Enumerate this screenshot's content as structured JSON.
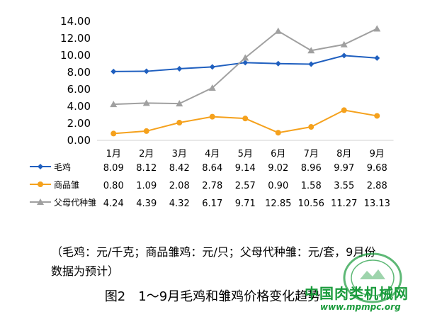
{
  "chart_data": {
    "type": "line",
    "categories": [
      "1月",
      "2月",
      "3月",
      "4月",
      "5月",
      "6月",
      "7月",
      "8月",
      "9月"
    ],
    "series": [
      {
        "name": "毛鸡",
        "color": "#1f5fbf",
        "marker": "diamond",
        "values": [
          8.09,
          8.12,
          8.42,
          8.64,
          9.14,
          9.02,
          8.96,
          9.97,
          9.68
        ],
        "labels": [
          "8.09",
          "8.12",
          "8.42",
          "8.64",
          "9.14",
          "9.02",
          "8.96",
          "9.97",
          "9.68"
        ]
      },
      {
        "name": "商品雏",
        "color": "#f5a11c",
        "marker": "circle",
        "values": [
          0.8,
          1.09,
          2.08,
          2.78,
          2.57,
          0.9,
          1.58,
          3.55,
          2.88
        ],
        "labels": [
          "0.80",
          "1.09",
          "2.08",
          "2.78",
          "2.57",
          "0.90",
          "1.58",
          "3.55",
          "2.88"
        ]
      },
      {
        "name": "父母代种雏",
        "color": "#a0a0a0",
        "marker": "triangle",
        "values": [
          4.24,
          4.39,
          4.32,
          6.17,
          9.71,
          12.85,
          10.56,
          11.27,
          13.13
        ],
        "labels": [
          "4.24",
          "4.39",
          "4.32",
          "6.17",
          "9.71",
          "12.85",
          "10.56",
          "11.27",
          "13.13"
        ]
      }
    ],
    "ylim": [
      0,
      14
    ],
    "yticks": [
      "0.00",
      "2.00",
      "4.00",
      "6.00",
      "8.00",
      "10.00",
      "12.00",
      "14.00"
    ],
    "grid": false,
    "legend": "data-table-below"
  },
  "note": "（毛鸡：元/千克；商品雏鸡：元/只；父母代种雏：元/套，9月份数据为预计）",
  "caption": "图2　1～9月毛鸡和雏鸡价格变化趋势",
  "watermark": {
    "text": "中国肉类机械网",
    "url": "www.mpmpc.org"
  }
}
